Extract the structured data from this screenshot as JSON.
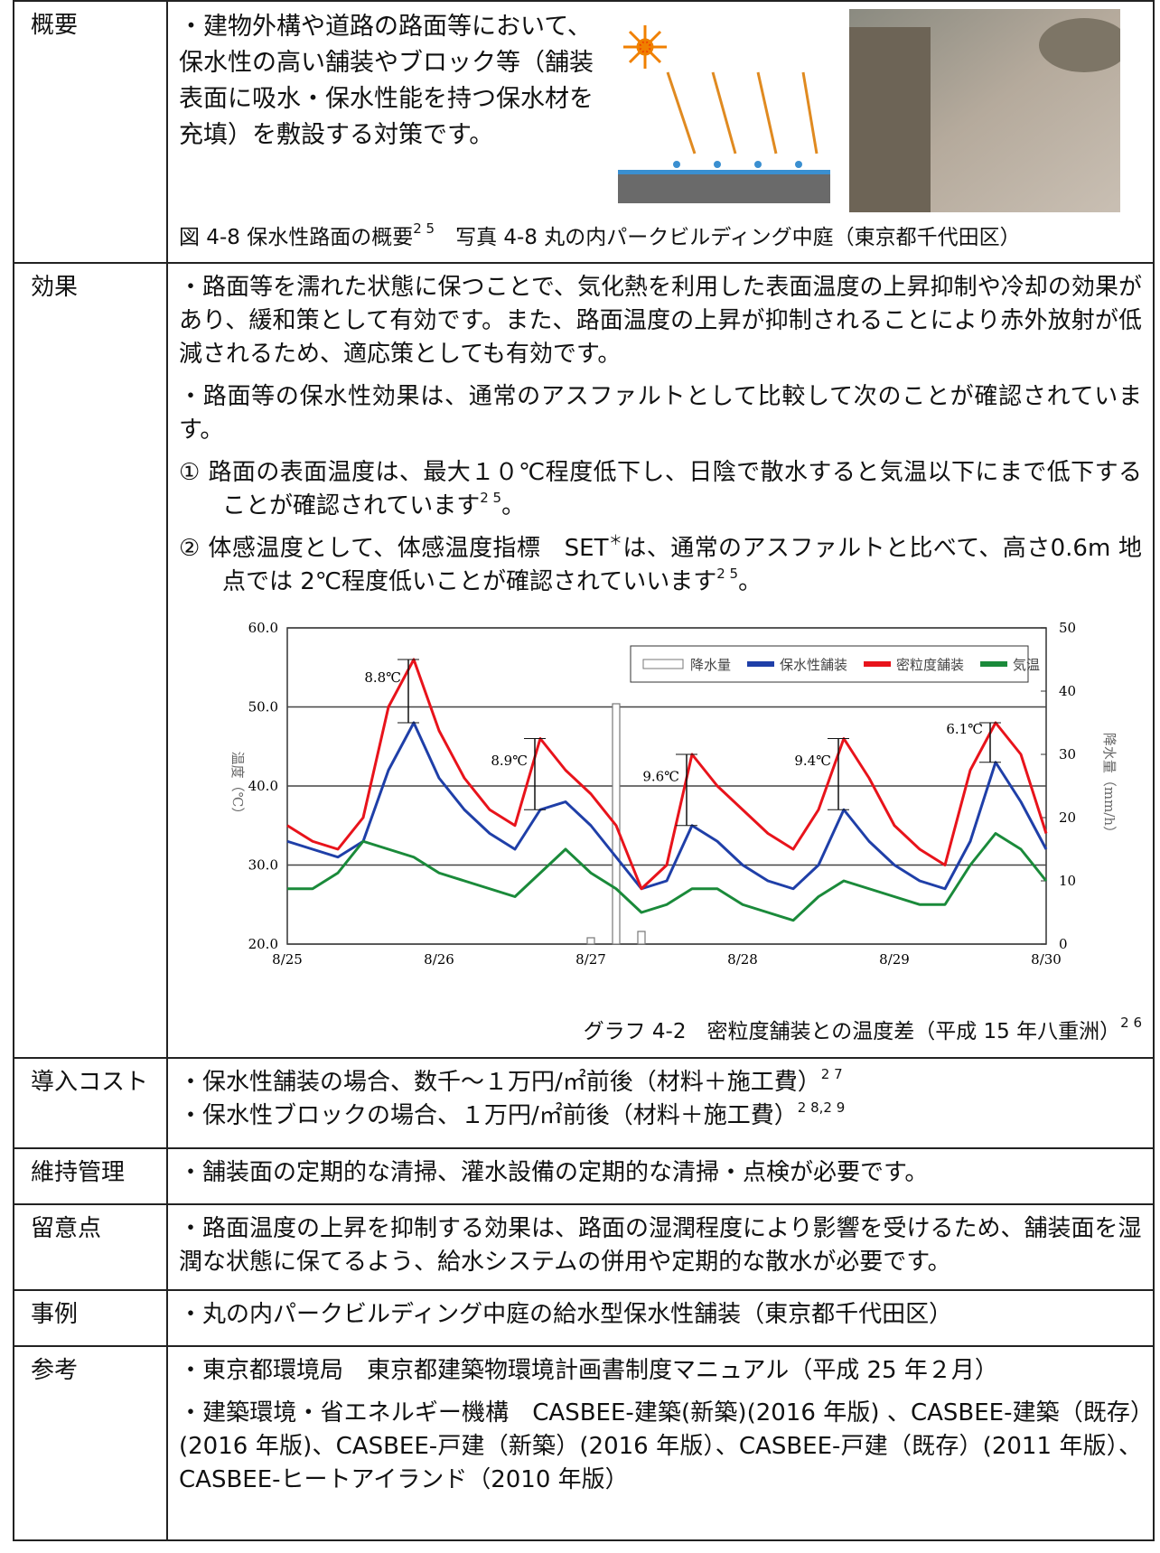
{
  "overview": {
    "heading": "概要",
    "text": "・建物外構や道路の路面等において、保水性の高い舗装やブロック等（舗装表面に吸水・保水性能を持つ保水材を充填）を敷設する対策です。",
    "figure_caption": "図 4-8  保水性路面の概要",
    "figure_ref": "2 5",
    "photo_caption": "写真 4-8  丸の内パークビルディング中庭（東京都千代田区）"
  },
  "effect": {
    "heading": "効果",
    "p1": "・路面等を濡れた状態に保つことで、気化熱を利用した表面温度の上昇抑制や冷却の効果があり、緩和策として有効です。また、路面温度の上昇が抑制されることにより赤外放射が低減されるため、適応策としても有効です。",
    "p2": "・路面等の保水性効果は、通常のアスファルトとして比較して次のことが確認されています。",
    "item1": {
      "text": "路面の表面温度は、最大１０℃程度低下し、日陰で散水すると気温以下にまで低下することが確認されています",
      "num": "①",
      "ref": "2 5",
      "end": "。"
    },
    "item2": {
      "num": "②",
      "text": "体感温度として、体感温度指標　SET",
      "mark": "＊",
      "text2": "は、通常のアスファルトと比べて、高さ0.6m 地点では 2℃程度低いことが確認されていいます",
      "ref": "2 5",
      "end": "。"
    },
    "graph": {
      "type": "line",
      "y_label": "温度（℃）",
      "y2_label": "降水量（mm/h）",
      "categories": [
        "8/25",
        null,
        null,
        null,
        null,
        null,
        "8/26",
        null,
        null,
        null,
        null,
        null,
        "8/27",
        null,
        null,
        null,
        null,
        null,
        "8/28",
        null,
        null,
        null,
        null,
        null,
        "8/29",
        null,
        null,
        null,
        null,
        null,
        "8/30"
      ],
      "ylim": [
        20,
        60
      ],
      "yticks": [
        {
          "value": 20,
          "label": "20.0"
        },
        {
          "value": 30,
          "label": "30.0"
        },
        {
          "value": 40,
          "label": "40.0"
        },
        {
          "value": 50,
          "label": "50.0"
        },
        {
          "value": 60,
          "label": "60.0"
        }
      ],
      "y2lim": [
        0,
        50
      ],
      "y2ticks": [
        0,
        10,
        20,
        30,
        40,
        50
      ],
      "grid": true,
      "legend": "top-right",
      "series": [
        {
          "name": "降水量",
          "color": "#777777",
          "type": "bar",
          "axis": "y2",
          "values": [
            0,
            0,
            0,
            0,
            0,
            0,
            0,
            0,
            0,
            0,
            0,
            0,
            1,
            38,
            2,
            0,
            0,
            0,
            0,
            0,
            0,
            0,
            0,
            0,
            0,
            0,
            0,
            0,
            0,
            0,
            0
          ]
        },
        {
          "name": "保水性舗装",
          "color": "#1f3fa8",
          "values": [
            33,
            32,
            31,
            33,
            42,
            48,
            41,
            37,
            34,
            32,
            37,
            38,
            35,
            31,
            27,
            28,
            35,
            33,
            30,
            28,
            27,
            30,
            37,
            33,
            30,
            28,
            27,
            33,
            43,
            38,
            32
          ]
        },
        {
          "name": "密粒度舗装",
          "color": "#e8131b",
          "values": [
            35,
            33,
            32,
            36,
            50,
            56,
            47,
            41,
            37,
            35,
            46,
            42,
            39,
            35,
            27,
            30,
            44,
            40,
            37,
            34,
            32,
            37,
            46,
            41,
            35,
            32,
            30,
            42,
            48,
            44,
            34
          ]
        },
        {
          "name": "気温",
          "color": "#1a8a3a",
          "values": [
            27,
            27,
            29,
            33,
            32,
            31,
            29,
            28,
            27,
            26,
            29,
            32,
            29,
            27,
            24,
            25,
            27,
            27,
            25,
            24,
            23,
            26,
            28,
            27,
            26,
            25,
            25,
            30,
            34,
            32,
            28
          ]
        }
      ],
      "annotations": [
        "8.8℃",
        "8.9℃",
        "9.6℃",
        "9.4℃",
        "6.1℃"
      ]
    },
    "graph_caption": "グラフ 4-2　密粒度舗装との温度差（平成 15 年八重洲）",
    "graph_ref": "2 6"
  },
  "cost": {
    "heading": "導入コスト",
    "line1": "・保水性舗装の場合、数千～１万円/㎡前後（材料＋施工費）",
    "ref1": "2 7",
    "line2": "・保水性ブロックの場合、１万円/㎡前後（材料＋施工費）",
    "ref2": "2 8,2 9"
  },
  "maintenance": {
    "heading": "維持管理",
    "text": "・舗装面の定期的な清掃、灌水設備の定期的な清掃・点検が必要です。"
  },
  "notes": {
    "heading": "留意点",
    "text": "・路面温度の上昇を抑制する効果は、路面の湿潤程度により影響を受けるため、舗装面を湿潤な状態に保てるよう、給水システムの併用や定期的な散水が必要です。"
  },
  "cases": {
    "heading": "事例",
    "text": "・丸の内パークビルディング中庭の給水型保水性舗装（東京都千代田区）"
  },
  "references": {
    "heading": "参考",
    "line1": "・東京都環境局　東京都建築物環境計画書制度マニュアル（平成 25 年２月）",
    "line2": "・建築環境・省エネルギー機構　CASBEE-建築(新築)(2016 年版) 、CASBEE-建築（既存）(2016 年版)、CASBEE-戸建（新築）(2016 年版）、CASBEE-戸建（既存）(2011 年版）、CASBEE-ヒートアイランド（2010 年版）"
  }
}
